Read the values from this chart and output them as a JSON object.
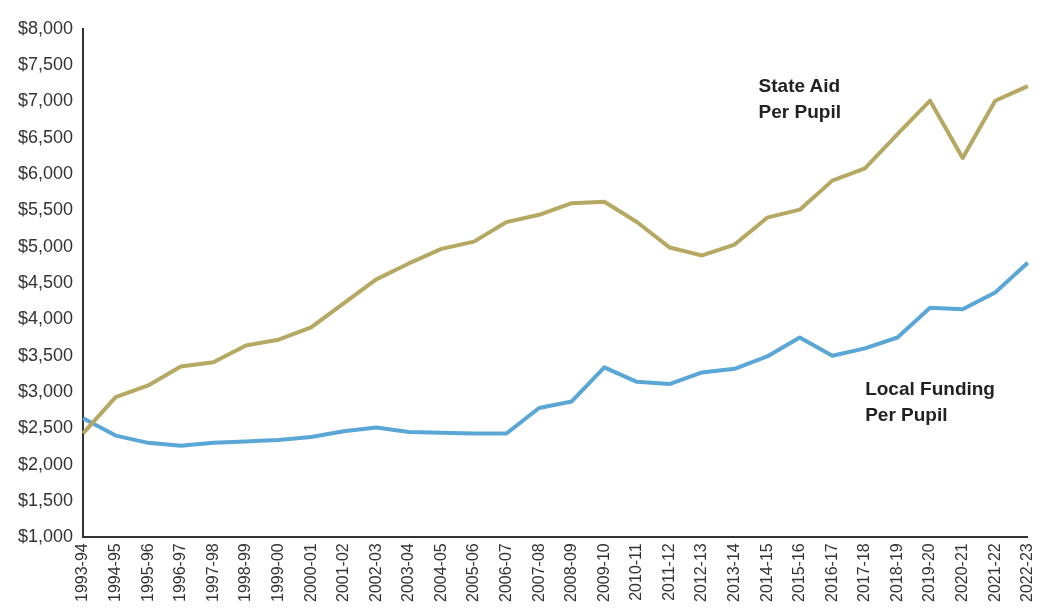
{
  "chart_data": {
    "type": "line",
    "categories": [
      "1993-94",
      "1994-95",
      "1995-96",
      "1996-97",
      "1997-98",
      "1998-99",
      "1999-00",
      "2000-01",
      "2001-02",
      "2002-03",
      "2003-04",
      "2004-05",
      "2005-06",
      "2006-07",
      "2007-08",
      "2008-09",
      "2009-10",
      "2010-11",
      "2011-12",
      "2012-13",
      "2013-14",
      "2014-15",
      "2015-16",
      "2016-17",
      "2017-18",
      "2018-19",
      "2019-20",
      "2020-21",
      "2021-22",
      "2022-23"
    ],
    "series": [
      {
        "name": "State Aid\nPer Pupil",
        "color": "#b4a862",
        "values": [
          2430,
          2930,
          3090,
          3350,
          3410,
          3640,
          3720,
          3890,
          4220,
          4550,
          4770,
          4970,
          5070,
          5340,
          5440,
          5600,
          5620,
          5340,
          4990,
          4880,
          5030,
          5400,
          5510,
          5910,
          6080,
          6550,
          7010,
          6220,
          7010,
          7210
        ]
      },
      {
        "name": "Local Funding\nPer Pupil",
        "color": "#5aa6d6",
        "values": [
          2640,
          2400,
          2300,
          2260,
          2300,
          2320,
          2340,
          2380,
          2460,
          2510,
          2450,
          2440,
          2430,
          2430,
          2780,
          2870,
          3340,
          3140,
          3110,
          3270,
          3320,
          3490,
          3750,
          3500,
          3600,
          3750,
          4160,
          4140,
          4370,
          4780
        ]
      }
    ],
    "ylim": [
      1000,
      8000
    ],
    "yticks": [
      {
        "value": 1000,
        "label": "$1,000"
      },
      {
        "value": 1500,
        "label": "$1,500"
      },
      {
        "value": 2000,
        "label": "$2,000"
      },
      {
        "value": 2500,
        "label": "$2,500"
      },
      {
        "value": 3000,
        "label": "$3,000"
      },
      {
        "value": 3500,
        "label": "$3,500"
      },
      {
        "value": 4000,
        "label": "$4,000"
      },
      {
        "value": 4500,
        "label": "$4,500"
      },
      {
        "value": 5000,
        "label": "$5,000"
      },
      {
        "value": 5500,
        "label": "$5,500"
      },
      {
        "value": 6000,
        "label": "$6,000"
      },
      {
        "value": 6500,
        "label": "$6,500"
      },
      {
        "value": 7000,
        "label": "$7,000"
      },
      {
        "value": 7500,
        "label": "$7,500"
      },
      {
        "value": 8000,
        "label": "$8,000"
      }
    ],
    "grid": false,
    "legend": false,
    "marker": "none",
    "line_style": "solid"
  }
}
